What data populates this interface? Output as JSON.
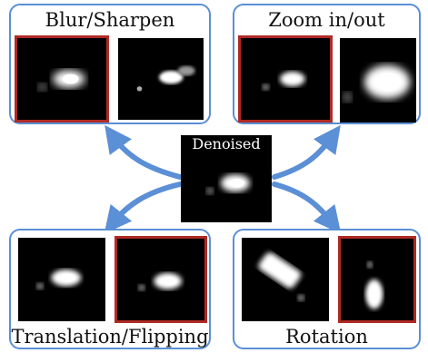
{
  "center": {
    "label": "Denoised"
  },
  "panels": {
    "blur_sharpen": {
      "title": "Blur/Sharpen"
    },
    "zoom": {
      "title": "Zoom in/out"
    },
    "translation_flipping": {
      "title": "Translation/Flipping"
    },
    "rotation": {
      "title": "Rotation"
    }
  },
  "colors": {
    "panel_border": "#5b8fd6",
    "arrow": "#5b8fd6",
    "highlight_frame": "#b02a24",
    "image_background": "#000000"
  }
}
